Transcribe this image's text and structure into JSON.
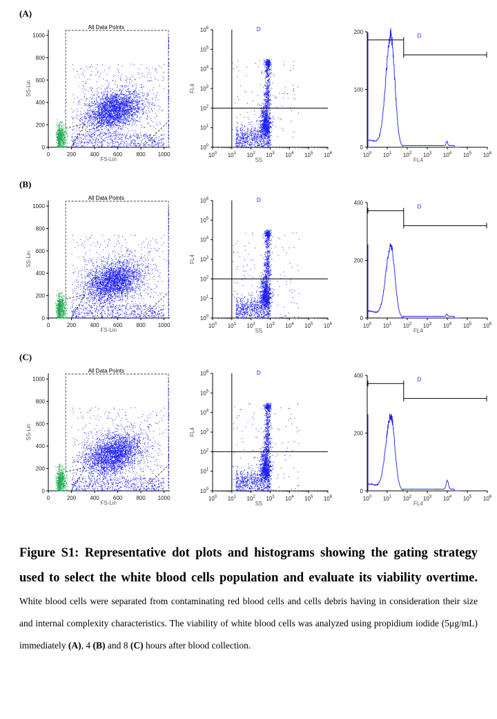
{
  "panels": [
    {
      "id": "A",
      "label": "(A)"
    },
    {
      "id": "B",
      "label": "(B)"
    },
    {
      "id": "C",
      "label": "(C)"
    }
  ],
  "gate_label": "All Data Points",
  "region_label": "D",
  "scatter_axes": {
    "xlabel": "FS-Lin",
    "ylabel": "SS-Lin",
    "x_ticks": [
      "0",
      "200",
      "400",
      "600",
      "800",
      "1000"
    ],
    "y_ticks": [
      "0",
      "200",
      "400",
      "600",
      "800",
      "1000"
    ]
  },
  "log_axes": {
    "xlabel": "SS",
    "ylabel": "FL4"
  },
  "hist_axes": {
    "xlabel": "FL4"
  },
  "colors": {
    "dots": "#1a1aff",
    "debris": "#22aa55",
    "axes": "#000000"
  },
  "chart_data": [
    {
      "type": "scatter",
      "panel": "A",
      "x_label": "FS-Lin",
      "y_label": "SS-Lin",
      "xlim": [
        0,
        1050
      ],
      "ylim": [
        0,
        1050
      ],
      "clusters": [
        {
          "name": "white blood cells",
          "cx": 560,
          "cy": 320
        },
        {
          "name": "debris",
          "cx": 100,
          "cy": 100
        }
      ]
    },
    {
      "type": "scatter",
      "panel": "A",
      "x_label": "SS",
      "y_label": "FL4",
      "scale": "log",
      "quadrant_lines": {
        "x": 10,
        "y": 100
      }
    },
    {
      "type": "line",
      "panel": "A",
      "x_label": "FL4",
      "scale": "log",
      "ylim": [
        0,
        200
      ],
      "y_ticks": [
        "0",
        "100",
        "200"
      ],
      "peak": {
        "x": 15,
        "y": 195
      }
    },
    {
      "type": "scatter",
      "panel": "B",
      "x_label": "FS-Lin",
      "y_label": "SS-Lin",
      "xlim": [
        0,
        1050
      ],
      "ylim": [
        0,
        1050
      ]
    },
    {
      "type": "scatter",
      "panel": "B",
      "x_label": "SS",
      "y_label": "FL4",
      "scale": "log",
      "quadrant_lines": {
        "x": 10,
        "y": 100
      }
    },
    {
      "type": "line",
      "panel": "B",
      "x_label": "FL4",
      "scale": "log",
      "ylim": [
        0,
        400
      ],
      "y_ticks": [
        "0",
        "200",
        "400"
      ],
      "peak": {
        "x": 15,
        "y": 250
      }
    },
    {
      "type": "scatter",
      "panel": "C",
      "x_label": "FS-Lin",
      "y_label": "SS-Lin",
      "xlim": [
        0,
        1050
      ],
      "ylim": [
        0,
        1050
      ]
    },
    {
      "type": "scatter",
      "panel": "C",
      "x_label": "SS",
      "y_label": "FL4",
      "scale": "log",
      "quadrant_lines": {
        "x": 10,
        "y": 100
      }
    },
    {
      "type": "line",
      "panel": "C",
      "x_label": "FL4",
      "scale": "log",
      "ylim": [
        0,
        400
      ],
      "y_ticks": [
        "0",
        "200",
        "400"
      ],
      "peak": {
        "x": 15,
        "y": 260
      }
    }
  ],
  "caption": {
    "title": "Figure S1: Representative dot plots and histograms showing the gating strategy used to select the white blood cells population and evaluate its viability overtime.",
    "body1": " White blood cells were separated from contaminating red blood cells and cells debris having in consideration their size and internal complexity characteristics. The viability of white blood cells was analyzed using propidium iodide (5μg/mL) immediately ",
    "ref_a": "(A)",
    "body2": ", 4 ",
    "ref_b": "(B)",
    "body3": " and 8 ",
    "ref_c": "(C)",
    "body4": " hours after blood collection."
  }
}
